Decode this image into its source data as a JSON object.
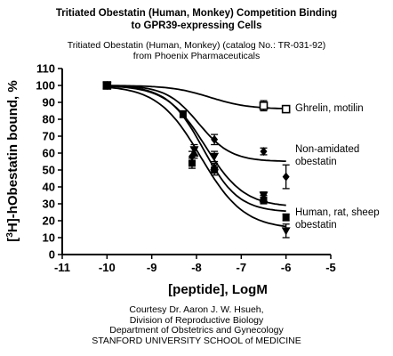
{
  "title": {
    "line1": "Tritiated Obestatin (Human, Monkey) Competition Binding",
    "line2": "to GPR39-expressing Cells"
  },
  "subtitle": {
    "line1": "Tritiated Obestatin (Human, Monkey) (catalog No.: TR-031-92)",
    "line2": "from Phoenix Pharmaceuticals"
  },
  "footer": {
    "line1": "Courtesy Dr. Aaron J. W. Hsueh,",
    "line2": "Division of Reproductive Biology",
    "line3": "Department of Obstetrics and Gynecology",
    "line4": "STANFORD UNIVERSITY SCHOOL of MEDICINE"
  },
  "chart_data": {
    "type": "scatter",
    "xlabel": "[peptide], LogM",
    "ylabel": "[3H]-hObestatin bound, %",
    "ylabel_parts": {
      "open": "[",
      "sup": "3",
      "rest": "H]-hObestatin bound, %"
    },
    "xlim": [
      -11,
      -5
    ],
    "ylim": [
      0,
      110
    ],
    "xticks": [
      -11,
      -10,
      -9,
      -8,
      -7,
      -6,
      -5
    ],
    "yticks": [
      0,
      10,
      20,
      30,
      40,
      50,
      60,
      70,
      80,
      90,
      100,
      110
    ],
    "grid": false,
    "annotations": [
      {
        "lines": [
          "Ghrelin, motilin"
        ],
        "color": "#000000"
      },
      {
        "lines": [
          "Non-amidated",
          "obestatin"
        ],
        "color": "#000000"
      },
      {
        "lines": [
          "Human, rat, sheep",
          "obestatin"
        ],
        "color": "#000000"
      }
    ],
    "series": [
      {
        "marker": "open-square",
        "x": [
          -10,
          -6.5,
          -6
        ],
        "y": [
          100,
          88,
          86
        ],
        "yerr": [
          0,
          3,
          2
        ],
        "fit": {
          "top": 100,
          "bottom": 86,
          "logec50": -7.7,
          "hill": 1
        }
      },
      {
        "marker": "diamond",
        "x": [
          -10,
          -8.1,
          -7.6,
          -6.5,
          -6
        ],
        "y": [
          100,
          58,
          68,
          61,
          46
        ],
        "yerr": [
          0,
          3,
          3,
          2,
          7
        ],
        "fit": {
          "top": 100,
          "bottom": 55,
          "logec50": -7.95,
          "hill": 1.2
        }
      },
      {
        "marker": "triangle-down",
        "x": [
          -10,
          -8.05,
          -7.6,
          -6.5,
          -6
        ],
        "y": [
          100,
          62,
          58,
          35,
          14
        ],
        "yerr": [
          0,
          3,
          3,
          2,
          4
        ],
        "fit": {
          "top": 100,
          "bottom": 15,
          "logec50": -7.9,
          "hill": 0.9
        }
      },
      {
        "marker": "square",
        "x": [
          -10,
          -8.3,
          -8.1,
          -7.6,
          -6.5,
          -6
        ],
        "y": [
          100,
          83,
          54,
          50,
          32,
          22
        ],
        "yerr": [
          0,
          2,
          3,
          3,
          2,
          2
        ],
        "fit": {
          "top": 100,
          "bottom": 25,
          "logec50": -7.85,
          "hill": 1.1
        }
      },
      {
        "marker": "triangle-up",
        "x": [
          -10,
          -8.05,
          -7.6,
          -6.5
        ],
        "y": [
          100,
          60,
          52,
          33
        ],
        "yerr": [
          0,
          3,
          2,
          2
        ],
        "fit": {
          "top": 100,
          "bottom": 28,
          "logec50": -7.8,
          "hill": 1.0
        }
      }
    ]
  }
}
